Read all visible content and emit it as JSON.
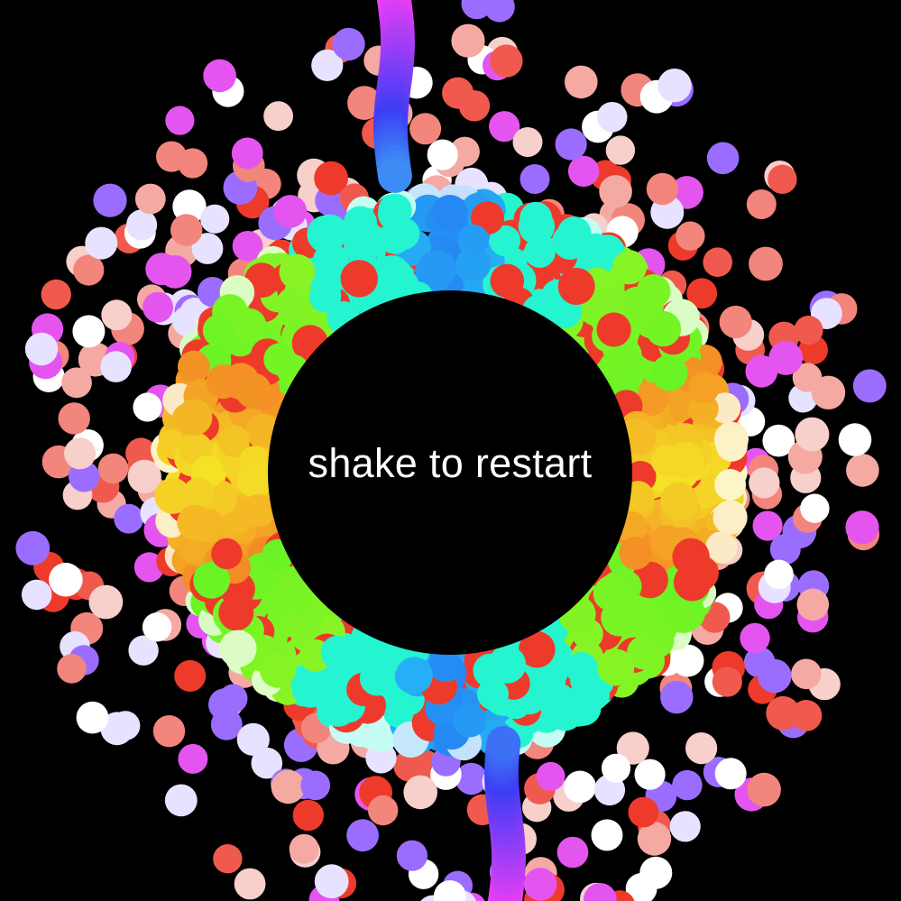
{
  "game": {
    "prompt_text": "shake to restart",
    "background_color": "#000000",
    "text_color": "#ffffff"
  }
}
